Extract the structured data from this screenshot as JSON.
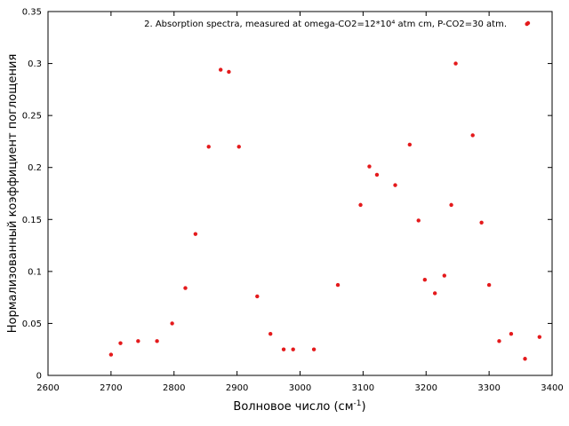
{
  "chart_data": {
    "type": "scatter",
    "title": "",
    "xlabel_main": "Волновое число (см",
    "xlabel_sup": "-1",
    "xlabel_end": ")",
    "ylabel": "Нормализованный коэффициент поглощения",
    "xlim": [
      2600,
      3400
    ],
    "ylim": [
      0,
      0.35
    ],
    "x_ticks": [
      2600,
      2700,
      2800,
      2900,
      3000,
      3100,
      3200,
      3300,
      3400
    ],
    "x_tick_labels": [
      "2600",
      "2700",
      "2800",
      "2900",
      "3000",
      "3100",
      "3200",
      "3300",
      "3400"
    ],
    "y_ticks": [
      0,
      0.05,
      0.1,
      0.15,
      0.2,
      0.25,
      0.3,
      0.35
    ],
    "y_tick_labels": [
      "0",
      "0.05",
      "0.1",
      "0.15",
      "0.2",
      "0.25",
      "0.3",
      "0.35"
    ],
    "grid": false,
    "legend_position": "top-right",
    "series": [
      {
        "name": "2. Absorption spectra, measured at omega-CO2=12*10⁴ atm cm, P-CO2=30 atm.",
        "color": "#e41a1c",
        "x": [
          2700,
          2715,
          2743,
          2773,
          2797,
          2818,
          2834,
          2855,
          2874,
          2887,
          2903,
          2932,
          2953,
          2974,
          2989,
          3022,
          3060,
          3096,
          3110,
          3122,
          3151,
          3174,
          3188,
          3198,
          3214,
          3229,
          3240,
          3247,
          3274,
          3288,
          3300,
          3316,
          3335,
          3357,
          3360,
          3380
        ],
        "y": [
          0.02,
          0.031,
          0.033,
          0.033,
          0.05,
          0.084,
          0.136,
          0.22,
          0.294,
          0.292,
          0.22,
          0.076,
          0.04,
          0.025,
          0.025,
          0.025,
          0.087,
          0.164,
          0.201,
          0.193,
          0.183,
          0.222,
          0.149,
          0.092,
          0.079,
          0.096,
          0.164,
          0.3,
          0.231,
          0.147,
          0.087,
          0.033,
          0.04,
          0.016,
          0.338,
          0.037
        ]
      }
    ]
  }
}
